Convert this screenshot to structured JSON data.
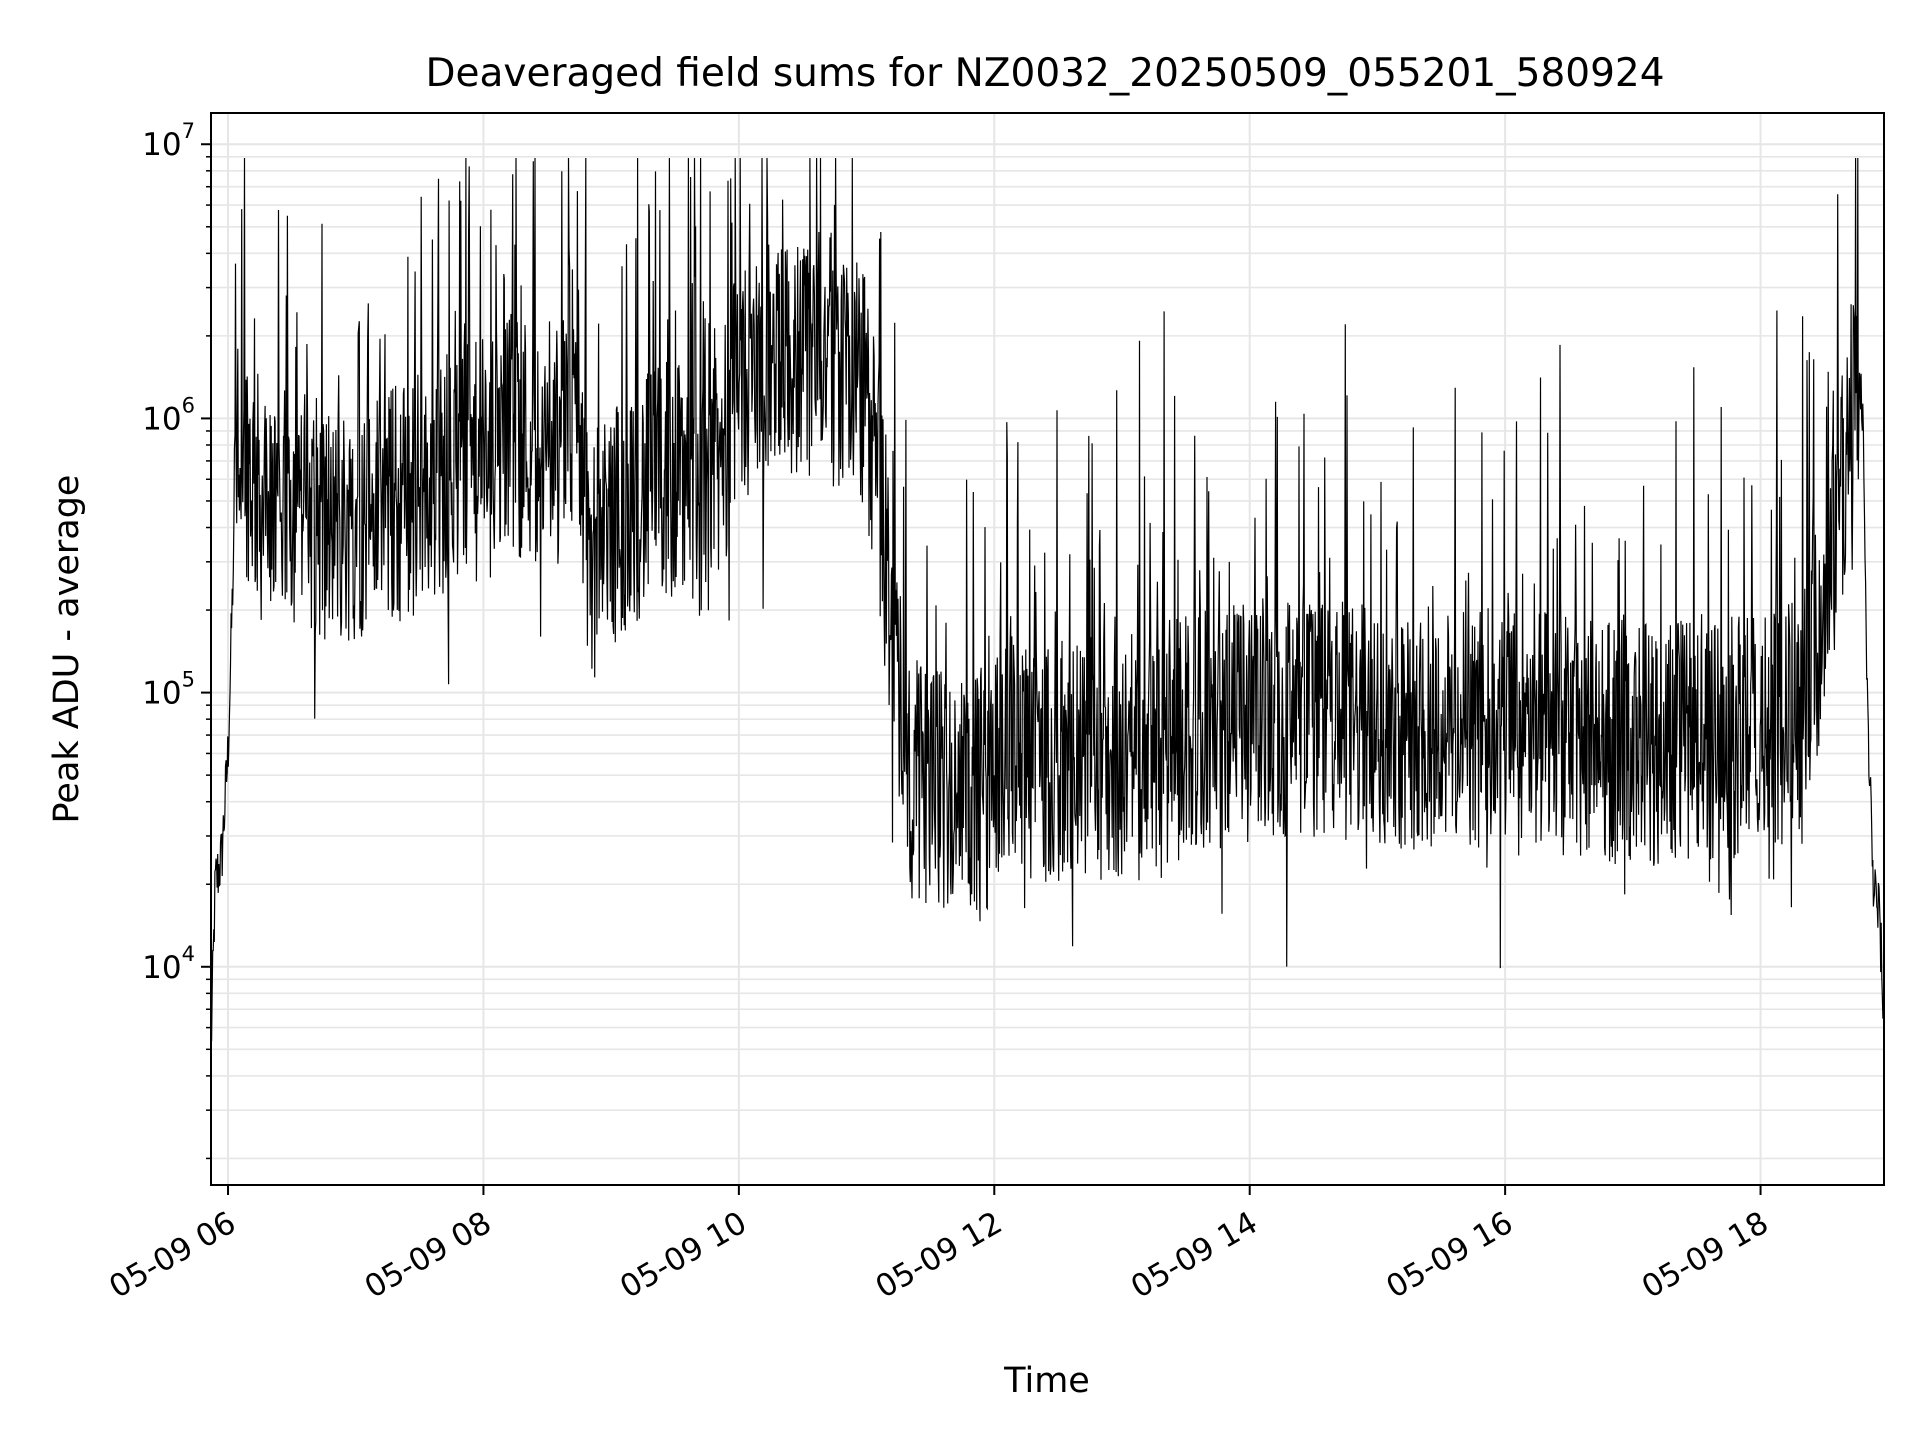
{
  "chart_data": {
    "type": "line",
    "title": "Deaveraged field sums for NZ0032_20250509_055201_580924",
    "xlabel": "Time",
    "ylabel": "Peak ADU - average",
    "x_scale": "time",
    "y_scale": "log",
    "xlim": [
      "05-09 05:52",
      "05-09 18:58"
    ],
    "ylim": [
      1600,
      13000000
    ],
    "x_ticks": [
      "05-09 06",
      "05-09 08",
      "05-09 10",
      "05-09 12",
      "05-09 14",
      "05-09 16",
      "05-09 18"
    ],
    "y_ticks": [
      {
        "base": "10",
        "exp": "4",
        "value": 10000
      },
      {
        "base": "10",
        "exp": "5",
        "value": 100000
      },
      {
        "base": "10",
        "exp": "6",
        "value": 1000000
      },
      {
        "base": "10",
        "exp": "7",
        "value": 10000000
      }
    ],
    "grid": true,
    "line_color": "#000000",
    "grid_color": "#e6e6e6",
    "series": [
      {
        "x": [
          "05-09 05:52",
          "05-09 05:54",
          "05-09 05:57",
          "05-09 06:00",
          "05-09 06:03",
          "05-09 06:06",
          "05-09 06:10",
          "05-09 06:15",
          "05-09 06:20",
          "05-09 06:25",
          "05-09 06:30",
          "05-09 06:40",
          "05-09 06:50",
          "05-09 07:00",
          "05-09 07:10",
          "05-09 07:20",
          "05-09 07:30",
          "05-09 07:40",
          "05-09 07:50",
          "05-09 08:00",
          "05-09 08:10",
          "05-09 08:20",
          "05-09 08:30",
          "05-09 08:40",
          "05-09 08:45",
          "05-09 08:50",
          "05-09 09:00",
          "05-09 09:10",
          "05-09 09:20",
          "05-09 09:30",
          "05-09 09:40",
          "05-09 09:50",
          "05-09 10:00",
          "05-09 10:10",
          "05-09 10:20",
          "05-09 10:30",
          "05-09 10:40",
          "05-09 10:50",
          "05-09 11:00",
          "05-09 11:05",
          "05-09 11:10",
          "05-09 11:15",
          "05-09 11:20",
          "05-09 11:30",
          "05-09 11:40",
          "05-09 11:50",
          "05-09 11:55",
          "05-09 12:00",
          "05-09 12:10",
          "05-09 12:20",
          "05-09 12:30",
          "05-09 12:40",
          "05-09 12:50",
          "05-09 13:00",
          "05-09 13:15",
          "05-09 13:30",
          "05-09 13:45",
          "05-09 14:00",
          "05-09 14:20",
          "05-09 14:40",
          "05-09 15:00",
          "05-09 15:20",
          "05-09 15:40",
          "05-09 16:00",
          "05-09 16:20",
          "05-09 16:40",
          "05-09 17:00",
          "05-09 17:20",
          "05-09 17:40",
          "05-09 18:00",
          "05-09 18:10",
          "05-09 18:20",
          "05-09 18:30",
          "05-09 18:35",
          "05-09 18:40",
          "05-09 18:45",
          "05-09 18:48",
          "05-09 18:50",
          "05-09 18:53",
          "05-09 18:56",
          "05-09 18:58"
        ],
        "y": [
          5000,
          20000,
          25000,
          60000,
          400000,
          800000,
          700000,
          500000,
          400000,
          450000,
          500000,
          450000,
          400000,
          420000,
          450000,
          500000,
          550000,
          600000,
          650000,
          700000,
          800000,
          900000,
          700000,
          900000,
          1000000,
          300000,
          400000,
          500000,
          550000,
          600000,
          500000,
          600000,
          1400000,
          1500000,
          1600000,
          1700000,
          1800000,
          1500000,
          1200000,
          600000,
          250000,
          120000,
          50000,
          45000,
          45000,
          42000,
          40000,
          60000,
          60000,
          58000,
          55000,
          55000,
          58000,
          60000,
          65000,
          70000,
          75000,
          80000,
          80000,
          78000,
          75000,
          75000,
          72000,
          75000,
          70000,
          68000,
          65000,
          66000,
          68000,
          70000,
          75000,
          90000,
          200000,
          400000,
          700000,
          1300000,
          1100000,
          100000,
          20000,
          15000,
          6000
        ]
      }
    ]
  }
}
